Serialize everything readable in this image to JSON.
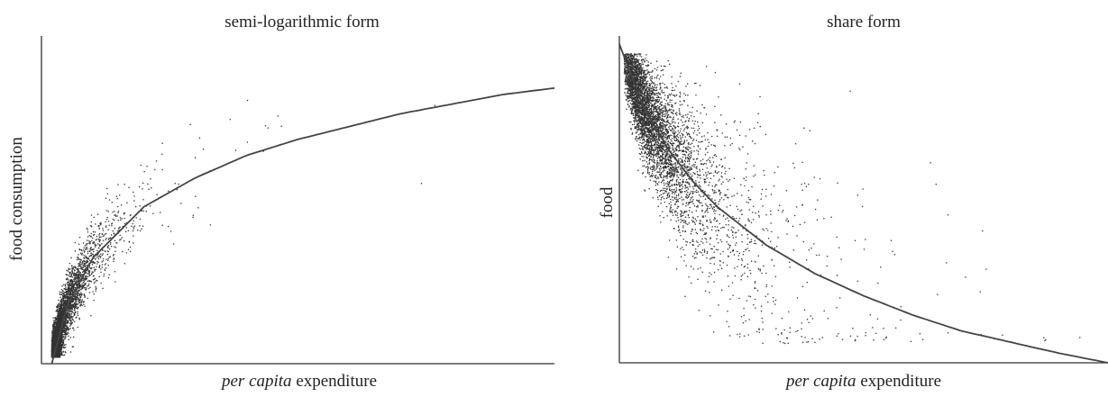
{
  "chart_data": [
    {
      "type": "scatter",
      "title": "semi-logarithmic form",
      "xlabel_italic": "per capita",
      "xlabel_rest": " expenditure",
      "ylabel": "food consumption",
      "axis_ticks": false,
      "grid": false,
      "xlim": [
        0,
        1
      ],
      "ylim": [
        0,
        1
      ],
      "point_count": 6000,
      "fitted_curve": {
        "form": "y = a + b*ln(x)",
        "x": [
          0.02,
          0.05,
          0.1,
          0.2,
          0.3,
          0.4,
          0.5,
          0.6,
          0.7,
          0.8,
          0.9,
          1.0
        ],
        "y": [
          0.0,
          0.18,
          0.33,
          0.49,
          0.58,
          0.65,
          0.7,
          0.74,
          0.78,
          0.81,
          0.84,
          0.86
        ]
      },
      "point_color": "#333333",
      "line_color": "#444444"
    },
    {
      "type": "scatter",
      "title": "share form",
      "xlabel_italic": "per capita",
      "xlabel_rest": " expenditure",
      "ylabel": "food",
      "axis_ticks": false,
      "grid": false,
      "xlim": [
        0,
        1
      ],
      "ylim": [
        0,
        1
      ],
      "point_count": 5000,
      "fitted_curve": {
        "form": "decreasing convex",
        "x": [
          0.0,
          0.05,
          0.1,
          0.15,
          0.2,
          0.3,
          0.4,
          0.5,
          0.6,
          0.7,
          0.8,
          0.9,
          1.0
        ],
        "y": [
          1.0,
          0.8,
          0.67,
          0.57,
          0.49,
          0.37,
          0.28,
          0.21,
          0.15,
          0.1,
          0.065,
          0.03,
          0.0
        ]
      },
      "point_color": "#333333",
      "line_color": "#444444"
    }
  ]
}
